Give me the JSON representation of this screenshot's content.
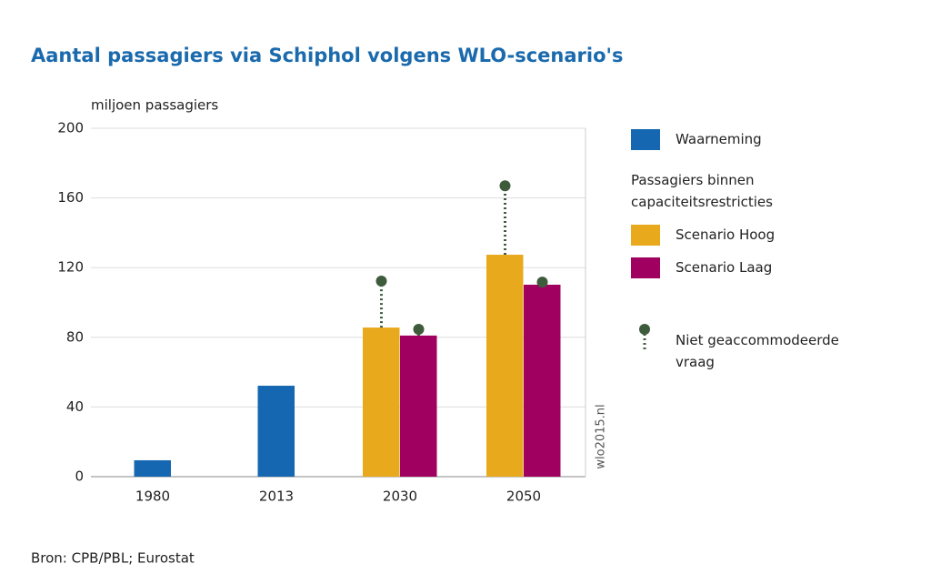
{
  "chart_data": {
    "type": "bar",
    "title": "Aantal passagiers via Schiphol volgens WLO-scenario's",
    "y_label": "miljoen passagiers",
    "source": "Bron: CPB/PBL; Eurostat",
    "watermark": "wlo2015.nl",
    "categories": [
      "1980",
      "2013",
      "2030",
      "2050"
    ],
    "ylim": [
      0,
      200
    ],
    "yticks": [
      0,
      40,
      80,
      120,
      160,
      200
    ],
    "grid": true,
    "legend_group_title": "Passagiers binnen capaciteitsrestricties",
    "demand_name": "Niet geaccommodeerde vraag",
    "demand_color": "#3e5c3c",
    "series": [
      {
        "name": "Waarneming",
        "color": "#1467b0",
        "values": [
          9.4,
          52.2,
          null,
          null
        ]
      },
      {
        "name": "Scenario Hoog",
        "color": "#e8a91c",
        "values": [
          null,
          null,
          85.6,
          127.4
        ],
        "demand": [
          null,
          null,
          112.3,
          167
        ]
      },
      {
        "name": "Scenario Laag",
        "color": "#a0005f",
        "values": [
          null,
          null,
          81,
          110.2
        ],
        "demand": [
          null,
          null,
          84.6,
          111.7
        ]
      }
    ]
  }
}
